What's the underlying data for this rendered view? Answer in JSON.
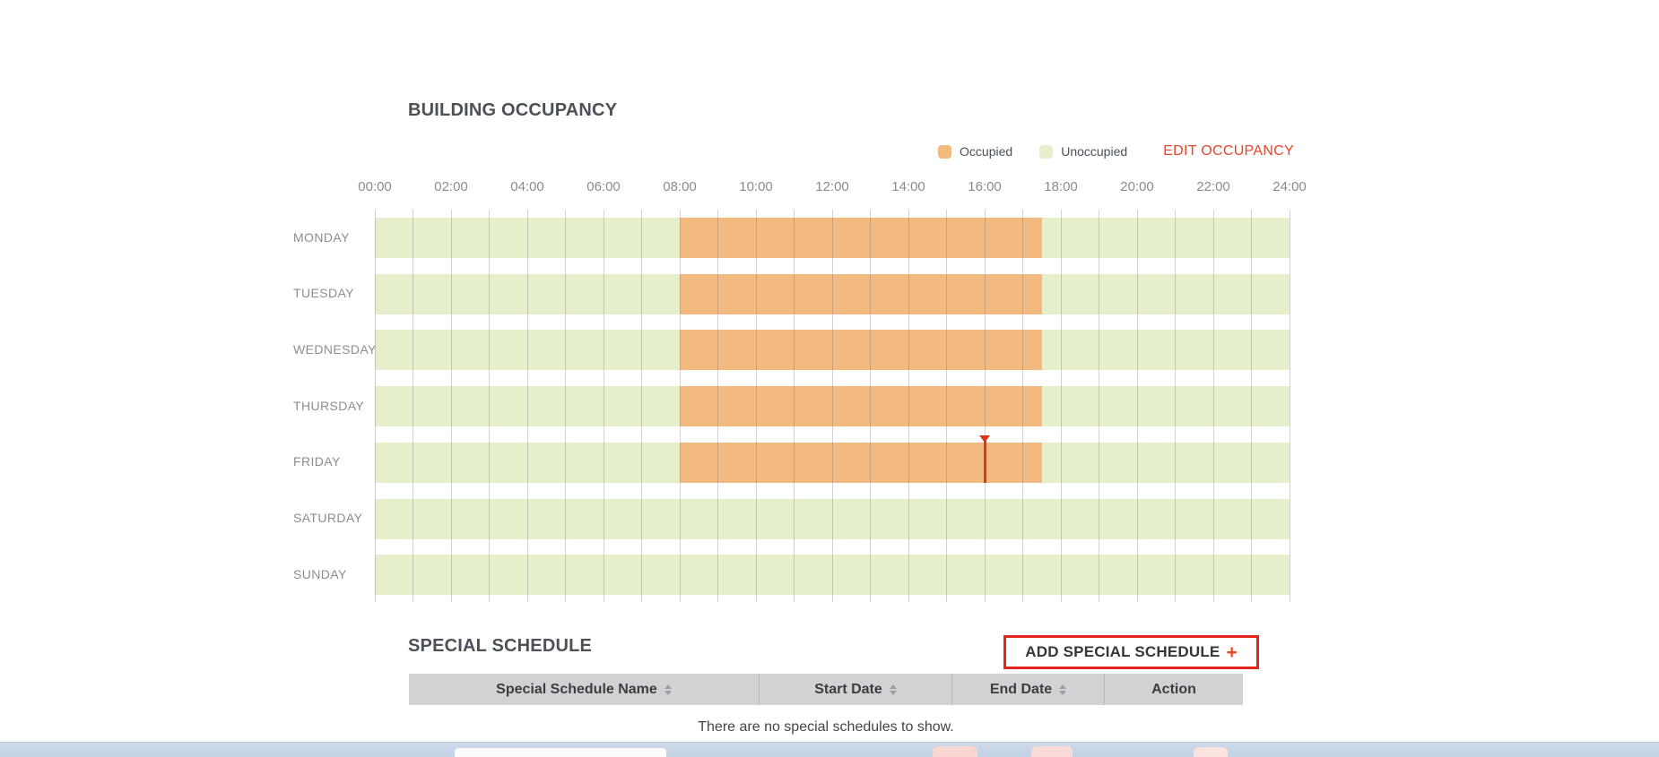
{
  "occupancy_section": {
    "title": "BUILDING OCCUPANCY",
    "edit_link_label": "EDIT OCCUPANCY",
    "legend": [
      {
        "key": "occupied",
        "label": "Occupied",
        "color": "#F2BA7F"
      },
      {
        "key": "unoccupied",
        "label": "Unoccupied",
        "color": "#E6EFCC"
      }
    ]
  },
  "chart_data": {
    "type": "heatmap",
    "title": "BUILDING OCCUPANCY",
    "legend_position": "top-right",
    "x_axis": {
      "ticks": [
        "00:00",
        "02:00",
        "04:00",
        "06:00",
        "08:00",
        "10:00",
        "12:00",
        "14:00",
        "16:00",
        "18:00",
        "20:00",
        "22:00",
        "24:00"
      ],
      "range_hours": [
        0,
        24
      ],
      "gridline_interval_hours": 1,
      "grid": "on"
    },
    "categories": [
      "MONDAY",
      "TUESDAY",
      "WEDNESDAY",
      "THURSDAY",
      "FRIDAY",
      "SATURDAY",
      "SUNDAY"
    ],
    "rows": [
      {
        "day": "MONDAY",
        "segments": [
          {
            "state": "unoccupied",
            "start": "00:00",
            "end": "08:00"
          },
          {
            "state": "occupied",
            "start": "08:00",
            "end": "17:30"
          },
          {
            "state": "unoccupied",
            "start": "17:30",
            "end": "24:00"
          }
        ]
      },
      {
        "day": "TUESDAY",
        "segments": [
          {
            "state": "unoccupied",
            "start": "00:00",
            "end": "08:00"
          },
          {
            "state": "occupied",
            "start": "08:00",
            "end": "17:30"
          },
          {
            "state": "unoccupied",
            "start": "17:30",
            "end": "24:00"
          }
        ]
      },
      {
        "day": "WEDNESDAY",
        "segments": [
          {
            "state": "unoccupied",
            "start": "00:00",
            "end": "08:00"
          },
          {
            "state": "occupied",
            "start": "08:00",
            "end": "17:30"
          },
          {
            "state": "unoccupied",
            "start": "17:30",
            "end": "24:00"
          }
        ]
      },
      {
        "day": "THURSDAY",
        "segments": [
          {
            "state": "unoccupied",
            "start": "00:00",
            "end": "08:00"
          },
          {
            "state": "occupied",
            "start": "08:00",
            "end": "17:30"
          },
          {
            "state": "unoccupied",
            "start": "17:30",
            "end": "24:00"
          }
        ]
      },
      {
        "day": "FRIDAY",
        "segments": [
          {
            "state": "unoccupied",
            "start": "00:00",
            "end": "08:00"
          },
          {
            "state": "occupied",
            "start": "08:00",
            "end": "17:30"
          },
          {
            "state": "unoccupied",
            "start": "17:30",
            "end": "24:00"
          }
        ]
      },
      {
        "day": "SATURDAY",
        "segments": [
          {
            "state": "unoccupied",
            "start": "00:00",
            "end": "24:00"
          }
        ]
      },
      {
        "day": "SUNDAY",
        "segments": [
          {
            "state": "unoccupied",
            "start": "00:00",
            "end": "24:00"
          }
        ]
      }
    ],
    "cursor": {
      "day": "FRIDAY",
      "time": "16:00",
      "color": "#D63A16"
    },
    "colors": {
      "occupied": "#F2BA7F",
      "unoccupied": "#E6EFCC",
      "gridline": "#C8C8C8"
    }
  },
  "special_schedule_section": {
    "title": "SPECIAL SCHEDULE",
    "add_button": {
      "label": "ADD SPECIAL SCHEDULE",
      "plus_icon": "+",
      "highlight_border_color": "#E1251B"
    },
    "table": {
      "columns": [
        {
          "label": "Special Schedule Name",
          "sortable": true
        },
        {
          "label": "Start Date",
          "sortable": true
        },
        {
          "label": "End Date",
          "sortable": true
        },
        {
          "label": "Action",
          "sortable": false
        }
      ],
      "rows": [],
      "empty_message": "There are no special schedules to show."
    }
  }
}
